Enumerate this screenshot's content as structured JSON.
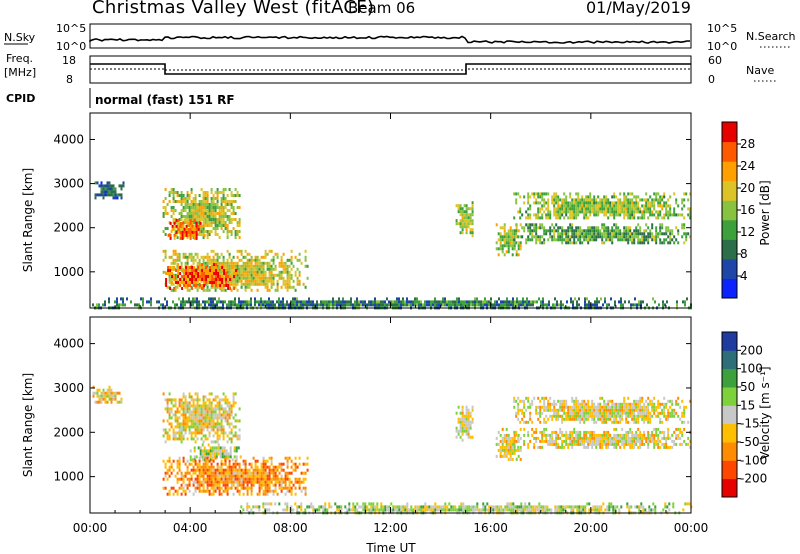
{
  "header": {
    "title": "Christmas Valley West (fitACF)",
    "beam": "Beam 06",
    "date": "01/May/2019"
  },
  "strip": {
    "nsky_label": "N.Sky",
    "nsky_ticks": [
      "10^5",
      "10^0"
    ],
    "nsearch_label": "N.Search",
    "nsearch_ticks": [
      "10^5",
      "10^0"
    ],
    "freq_label": "Freq.",
    "freq_unit": "[MHz]",
    "freq_ticks": [
      "18",
      "8"
    ],
    "nave_label": "Nave",
    "nave_ticks": [
      "60",
      "0"
    ],
    "cpid_label": "CPID",
    "cpid_value": "normal (fast) 151 RF"
  },
  "chart_data": [
    {
      "type": "heatmap",
      "panel": "power",
      "ylabel": "Slant Range [km]",
      "yticks": [
        "1000",
        "2000",
        "3000",
        "4000"
      ],
      "ylim": [
        180,
        4600
      ],
      "xlim": [
        0,
        24
      ],
      "colorbar": {
        "label": "Power [dB]",
        "ticks": [
          "4",
          "8",
          "12",
          "16",
          "20",
          "24",
          "28"
        ],
        "range": [
          0,
          32
        ],
        "colors": [
          "#0a23ff",
          "#1e46a8",
          "#2d6e4a",
          "#3ca03c",
          "#87c341",
          "#dcc328",
          "#ffa000",
          "#ff5a00",
          "#e60000"
        ]
      },
      "regions": [
        {
          "t": [
            0.1,
            1.3
          ],
          "r": [
            2650,
            3050
          ],
          "level": 0.22
        },
        {
          "t": [
            2.9,
            6.0
          ],
          "r": [
            1800,
            2900
          ],
          "level": 0.55
        },
        {
          "t": [
            3.1,
            4.6
          ],
          "r": [
            1750,
            2200
          ],
          "level": 0.82
        },
        {
          "t": [
            2.9,
            8.7
          ],
          "r": [
            550,
            1500
          ],
          "level": 0.58
        },
        {
          "t": [
            3.0,
            5.8
          ],
          "r": [
            650,
            1200
          ],
          "level": 0.82
        },
        {
          "t": [
            14.6,
            15.3
          ],
          "r": [
            1850,
            2600
          ],
          "level": 0.5
        },
        {
          "t": [
            16.2,
            17.2
          ],
          "r": [
            1400,
            2100
          ],
          "level": 0.55
        },
        {
          "t": [
            16.9,
            24.0
          ],
          "r": [
            2200,
            2800
          ],
          "level": 0.5
        },
        {
          "t": [
            16.9,
            24.0
          ],
          "r": [
            1650,
            2100
          ],
          "level": 0.4
        },
        {
          "t": [
            0.0,
            24.0
          ],
          "r": [
            180,
            420
          ],
          "level": 0.3
        }
      ]
    },
    {
      "type": "heatmap",
      "panel": "velocity",
      "ylabel": "Slant Range [km]",
      "yticks": [
        "1000",
        "2000",
        "3000",
        "4000"
      ],
      "ylim": [
        180,
        4600
      ],
      "xlim": [
        0,
        24
      ],
      "xlabel": "Time UT",
      "xticks": [
        "00:00",
        "04:00",
        "08:00",
        "12:00",
        "16:00",
        "20:00",
        "00:00"
      ],
      "colorbar": {
        "label": "Velocity [m s⁻¹]",
        "ticks": [
          "-200",
          "-100",
          "-50",
          "-15",
          "15",
          "50",
          "100",
          "200"
        ],
        "colors": [
          "#e60000",
          "#ff4600",
          "#ff8c00",
          "#ffbe00",
          "#c8c8c8",
          "#7dd23c",
          "#3ca03c",
          "#2d6e78",
          "#1e3ca0"
        ]
      },
      "regions": [
        {
          "t": [
            0.1,
            1.3
          ],
          "r": [
            2650,
            3050
          ],
          "level": 0.45
        },
        {
          "t": [
            2.9,
            6.0
          ],
          "r": [
            1800,
            2900
          ],
          "level": 0.45
        },
        {
          "t": [
            3.9,
            6.0
          ],
          "r": [
            1350,
            1750
          ],
          "level": 0.55
        },
        {
          "t": [
            2.9,
            8.7
          ],
          "r": [
            600,
            1450
          ],
          "level": 0.3
        },
        {
          "t": [
            14.6,
            15.3
          ],
          "r": [
            1850,
            2600
          ],
          "level": 0.5
        },
        {
          "t": [
            16.2,
            17.2
          ],
          "r": [
            1400,
            2100
          ],
          "level": 0.45
        },
        {
          "t": [
            16.9,
            24.0
          ],
          "r": [
            2200,
            2800
          ],
          "level": 0.45
        },
        {
          "t": [
            16.9,
            24.0
          ],
          "r": [
            1650,
            2100
          ],
          "level": 0.45
        },
        {
          "t": [
            6.0,
            24.0
          ],
          "r": [
            180,
            420
          ],
          "level": 0.55
        }
      ]
    }
  ]
}
